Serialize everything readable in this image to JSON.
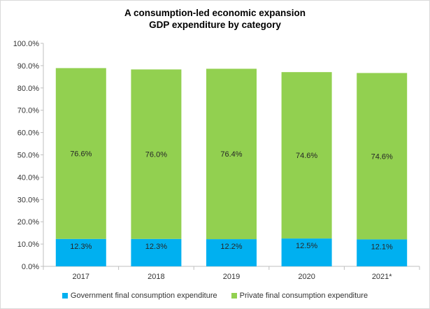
{
  "chart_data": {
    "type": "bar",
    "stacked": true,
    "title": "A consumption-led economic expansion",
    "subtitle": "GDP expenditure by category",
    "categories": [
      "2017",
      "2018",
      "2019",
      "2020",
      "2021*"
    ],
    "series": [
      {
        "name": "Government final consumption expenditure",
        "color": "#00b0f0",
        "values": [
          12.3,
          12.3,
          12.2,
          12.5,
          12.1
        ],
        "labels": [
          "12.3%",
          "12.3%",
          "12.2%",
          "12.5%",
          "12.1%"
        ]
      },
      {
        "name": "Private final consumption expenditure",
        "color": "#92d050",
        "values": [
          76.6,
          76.0,
          76.4,
          74.6,
          74.6
        ],
        "labels": [
          "76.6%",
          "76.0%",
          "76.4%",
          "74.6%",
          "74.6%"
        ]
      }
    ],
    "ylim": [
      0,
      100
    ],
    "yticks": [
      "0.0%",
      "10.0%",
      "20.0%",
      "30.0%",
      "40.0%",
      "50.0%",
      "60.0%",
      "70.0%",
      "80.0%",
      "90.0%",
      "100.0%"
    ],
    "xlabel": "",
    "ylabel": "",
    "grid": false,
    "legend_position": "bottom"
  }
}
